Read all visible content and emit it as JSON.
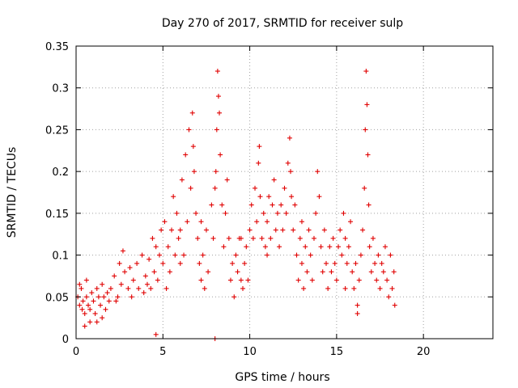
{
  "chart_data": {
    "type": "scatter",
    "title": "Day 270 of 2017, SRMTID for receiver sulp",
    "xlabel": "GPS time / hours",
    "ylabel": "SRMTID / TECUs",
    "xlim": [
      0,
      24
    ],
    "ylim": [
      0,
      0.35
    ],
    "x_ticks": [
      0,
      5,
      10,
      15,
      20
    ],
    "y_ticks": [
      0,
      0.05,
      0.1,
      0.15,
      0.2,
      0.25,
      0.3,
      0.35
    ],
    "x_tick_labels": [
      "0",
      "5",
      "10",
      "15",
      "20"
    ],
    "y_tick_labels": [
      "0",
      "0.05",
      "0.1",
      "0.15",
      "0.2",
      "0.25",
      "0.3",
      "0.35"
    ],
    "grid": true,
    "marker": "+",
    "color": "#e00000",
    "series": [
      {
        "name": "sulp",
        "points": [
          [
            0.1,
            0.05
          ],
          [
            0.2,
            0.04
          ],
          [
            0.3,
            0.06
          ],
          [
            0.35,
            0.035
          ],
          [
            0.4,
            0.045
          ],
          [
            0.5,
            0.03
          ],
          [
            0.6,
            0.05
          ],
          [
            0.7,
            0.04
          ],
          [
            0.8,
            0.035
          ],
          [
            0.9,
            0.055
          ],
          [
            1.0,
            0.045
          ],
          [
            1.1,
            0.03
          ],
          [
            1.2,
            0.06
          ],
          [
            1.3,
            0.05
          ],
          [
            1.4,
            0.04
          ],
          [
            1.5,
            0.065
          ],
          [
            1.6,
            0.05
          ],
          [
            1.7,
            0.035
          ],
          [
            1.8,
            0.055
          ],
          [
            1.9,
            0.045
          ],
          [
            0.5,
            0.015
          ],
          [
            0.8,
            0.02
          ],
          [
            1.2,
            0.02
          ],
          [
            1.5,
            0.025
          ],
          [
            0.2,
            0.065
          ],
          [
            0.6,
            0.07
          ],
          [
            2.0,
            0.06
          ],
          [
            2.2,
            0.075
          ],
          [
            2.4,
            0.05
          ],
          [
            2.5,
            0.09
          ],
          [
            2.6,
            0.065
          ],
          [
            2.8,
            0.08
          ],
          [
            3.0,
            0.06
          ],
          [
            3.1,
            0.085
          ],
          [
            3.3,
            0.07
          ],
          [
            3.5,
            0.09
          ],
          [
            3.6,
            0.06
          ],
          [
            3.8,
            0.1
          ],
          [
            4.0,
            0.075
          ],
          [
            4.2,
            0.095
          ],
          [
            4.3,
            0.06
          ],
          [
            4.5,
            0.08
          ],
          [
            4.6,
            0.11
          ],
          [
            4.7,
            0.07
          ],
          [
            4.8,
            0.1
          ],
          [
            4.9,
            0.13
          ],
          [
            2.3,
            0.045
          ],
          [
            2.7,
            0.105
          ],
          [
            3.2,
            0.05
          ],
          [
            3.9,
            0.055
          ],
          [
            4.4,
            0.12
          ],
          [
            4.1,
            0.065
          ],
          [
            5.0,
            0.09
          ],
          [
            5.1,
            0.14
          ],
          [
            5.2,
            0.06
          ],
          [
            5.3,
            0.11
          ],
          [
            5.4,
            0.08
          ],
          [
            5.5,
            0.13
          ],
          [
            5.6,
            0.17
          ],
          [
            5.7,
            0.1
          ],
          [
            5.8,
            0.15
          ],
          [
            5.9,
            0.12
          ],
          [
            6.0,
            0.13
          ],
          [
            6.1,
            0.19
          ],
          [
            6.2,
            0.1
          ],
          [
            6.3,
            0.22
          ],
          [
            6.4,
            0.14
          ],
          [
            6.5,
            0.25
          ],
          [
            6.6,
            0.18
          ],
          [
            6.7,
            0.27
          ],
          [
            6.75,
            0.23
          ],
          [
            6.8,
            0.2
          ],
          [
            6.9,
            0.15
          ],
          [
            7.0,
            0.12
          ],
          [
            7.1,
            0.09
          ],
          [
            7.2,
            0.14
          ],
          [
            7.3,
            0.1
          ],
          [
            7.4,
            0.06
          ],
          [
            7.5,
            0.13
          ],
          [
            7.6,
            0.08
          ],
          [
            7.8,
            0.16
          ],
          [
            7.9,
            0.12
          ],
          [
            8.0,
            0.18
          ],
          [
            8.05,
            0.2
          ],
          [
            8.1,
            0.25
          ],
          [
            8.15,
            0.32
          ],
          [
            8.2,
            0.29
          ],
          [
            8.25,
            0.27
          ],
          [
            8.3,
            0.22
          ],
          [
            8.4,
            0.16
          ],
          [
            8.5,
            0.11
          ],
          [
            8.6,
            0.15
          ],
          [
            8.7,
            0.19
          ],
          [
            8.8,
            0.12
          ],
          [
            8.9,
            0.07
          ],
          [
            9.0,
            0.09
          ],
          [
            9.1,
            0.05
          ],
          [
            9.2,
            0.1
          ],
          [
            9.3,
            0.08
          ],
          [
            9.4,
            0.12
          ],
          [
            9.5,
            0.07
          ],
          [
            9.6,
            0.06
          ],
          [
            9.7,
            0.09
          ],
          [
            9.8,
            0.11
          ],
          [
            9.9,
            0.07
          ],
          [
            10.0,
            0.13
          ],
          [
            10.1,
            0.16
          ],
          [
            10.2,
            0.12
          ],
          [
            10.3,
            0.18
          ],
          [
            10.4,
            0.14
          ],
          [
            10.5,
            0.21
          ],
          [
            10.55,
            0.23
          ],
          [
            10.6,
            0.17
          ],
          [
            10.7,
            0.12
          ],
          [
            10.8,
            0.15
          ],
          [
            10.9,
            0.11
          ],
          [
            11.0,
            0.14
          ],
          [
            11.1,
            0.17
          ],
          [
            11.2,
            0.12
          ],
          [
            11.3,
            0.16
          ],
          [
            11.4,
            0.19
          ],
          [
            11.5,
            0.13
          ],
          [
            11.6,
            0.15
          ],
          [
            11.7,
            0.11
          ],
          [
            11.8,
            0.16
          ],
          [
            11.9,
            0.13
          ],
          [
            12.0,
            0.18
          ],
          [
            12.1,
            0.15
          ],
          [
            12.2,
            0.21
          ],
          [
            12.3,
            0.24
          ],
          [
            12.35,
            0.2
          ],
          [
            12.4,
            0.17
          ],
          [
            12.5,
            0.13
          ],
          [
            12.6,
            0.16
          ],
          [
            12.7,
            0.1
          ],
          [
            12.8,
            0.07
          ],
          [
            12.9,
            0.12
          ],
          [
            13.0,
            0.09
          ],
          [
            13.1,
            0.06
          ],
          [
            13.2,
            0.11
          ],
          [
            13.3,
            0.08
          ],
          [
            13.4,
            0.13
          ],
          [
            13.5,
            0.1
          ],
          [
            13.6,
            0.07
          ],
          [
            13.7,
            0.12
          ],
          [
            13.8,
            0.15
          ],
          [
            13.9,
            0.2
          ],
          [
            14.0,
            0.17
          ],
          [
            14.1,
            0.11
          ],
          [
            14.2,
            0.08
          ],
          [
            14.3,
            0.13
          ],
          [
            14.4,
            0.09
          ],
          [
            14.5,
            0.06
          ],
          [
            14.6,
            0.11
          ],
          [
            14.7,
            0.08
          ],
          [
            14.8,
            0.12
          ],
          [
            14.9,
            0.09
          ],
          [
            15.0,
            0.07
          ],
          [
            15.1,
            0.11
          ],
          [
            15.2,
            0.13
          ],
          [
            15.3,
            0.1
          ],
          [
            15.4,
            0.15
          ],
          [
            15.5,
            0.12
          ],
          [
            15.6,
            0.09
          ],
          [
            15.7,
            0.11
          ],
          [
            15.8,
            0.14
          ],
          [
            15.9,
            0.08
          ],
          [
            16.0,
            0.06
          ],
          [
            16.1,
            0.09
          ],
          [
            16.2,
            0.04
          ],
          [
            16.3,
            0.07
          ],
          [
            16.4,
            0.1
          ],
          [
            16.5,
            0.13
          ],
          [
            16.6,
            0.18
          ],
          [
            16.65,
            0.25
          ],
          [
            16.7,
            0.32
          ],
          [
            16.75,
            0.28
          ],
          [
            16.8,
            0.22
          ],
          [
            16.85,
            0.16
          ],
          [
            16.9,
            0.11
          ],
          [
            17.0,
            0.08
          ],
          [
            17.1,
            0.12
          ],
          [
            17.2,
            0.09
          ],
          [
            17.3,
            0.07
          ],
          [
            17.4,
            0.1
          ],
          [
            17.5,
            0.06
          ],
          [
            17.6,
            0.09
          ],
          [
            17.7,
            0.08
          ],
          [
            17.8,
            0.11
          ],
          [
            17.9,
            0.07
          ],
          [
            18.0,
            0.05
          ],
          [
            18.1,
            0.1
          ],
          [
            18.2,
            0.06
          ],
          [
            18.3,
            0.08
          ],
          [
            18.35,
            0.04
          ],
          [
            16.2,
            0.03
          ],
          [
            15.5,
            0.06
          ],
          [
            13.0,
            0.14
          ],
          [
            11.0,
            0.1
          ],
          [
            9.5,
            0.12
          ],
          [
            7.2,
            0.07
          ],
          [
            6.0,
            0.09
          ],
          [
            4.6,
            0.005
          ],
          [
            8.0,
            0.0
          ]
        ]
      }
    ]
  }
}
